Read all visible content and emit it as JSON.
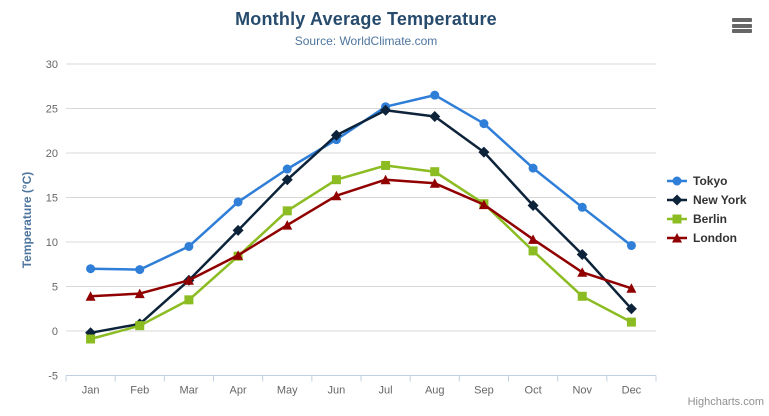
{
  "chart_data": {
    "type": "line",
    "title": "Monthly Average Temperature",
    "subtitle": "Source: WorldClimate.com",
    "xlabel": "",
    "ylabel": "Temperature (°C)",
    "ylim": [
      -5,
      30
    ],
    "ytick_step": 5,
    "grid": true,
    "legend_position": "right",
    "categories": [
      "Jan",
      "Feb",
      "Mar",
      "Apr",
      "May",
      "Jun",
      "Jul",
      "Aug",
      "Sep",
      "Oct",
      "Nov",
      "Dec"
    ],
    "series": [
      {
        "name": "Tokyo",
        "color": "#2f7ed8",
        "marker": "circle",
        "values": [
          7.0,
          6.9,
          9.5,
          14.5,
          18.2,
          21.5,
          25.2,
          26.5,
          23.3,
          18.3,
          13.9,
          9.6
        ]
      },
      {
        "name": "New York",
        "color": "#0d233a",
        "marker": "diamond",
        "values": [
          -0.2,
          0.8,
          5.7,
          11.3,
          17.0,
          22.0,
          24.8,
          24.1,
          20.1,
          14.1,
          8.6,
          2.5
        ]
      },
      {
        "name": "Berlin",
        "color": "#8bbc21",
        "marker": "square",
        "values": [
          -0.9,
          0.6,
          3.5,
          8.4,
          13.5,
          17.0,
          18.6,
          17.9,
          14.3,
          9.0,
          3.9,
          1.0
        ]
      },
      {
        "name": "London",
        "color": "#910000",
        "marker": "triangle",
        "values": [
          3.9,
          4.2,
          5.7,
          8.5,
          11.9,
          15.2,
          17.0,
          16.6,
          14.2,
          10.3,
          6.6,
          4.8
        ]
      }
    ]
  },
  "credits": {
    "label": "Highcharts.com"
  },
  "export_menu": {
    "icon": "hamburger-icon"
  },
  "colors": {
    "title": "#274b6d",
    "subtitle": "#4d759e",
    "axis_title": "#4d759e",
    "axis_labels": "#666666",
    "grid": "#d8d8d8",
    "axis_line": "#c0d0e0",
    "legend_text": "#333333",
    "credits": "#909090",
    "background": "#ffffff"
  }
}
